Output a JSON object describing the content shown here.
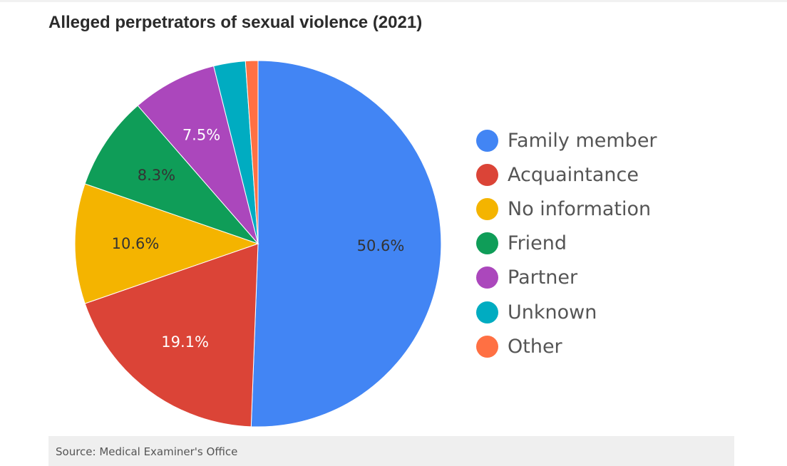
{
  "chart_data": {
    "type": "pie",
    "title": "Alleged perpetrators of sexual violence (2021)",
    "legend_position": "right",
    "slices": [
      {
        "label": "Family member",
        "value": 50.6,
        "display": "50.6%",
        "color": "#4285f4",
        "label_color": "#333333"
      },
      {
        "label": "Acquaintance",
        "value": 19.1,
        "display": "19.1%",
        "color": "#db4437",
        "label_color": "#ffffff"
      },
      {
        "label": "No information",
        "value": 10.6,
        "display": "10.6%",
        "color": "#f4b400",
        "label_color": "#333333"
      },
      {
        "label": "Friend",
        "value": 8.3,
        "display": "8.3%",
        "color": "#0f9d58",
        "label_color": "#333333"
      },
      {
        "label": "Partner",
        "value": 7.5,
        "display": "7.5%",
        "color": "#ab47bc",
        "label_color": "#ffffff"
      },
      {
        "label": "Unknown",
        "value": 2.8,
        "display": "",
        "color": "#00acc1",
        "label_color": "#ffffff"
      },
      {
        "label": "Other",
        "value": 1.1,
        "display": "",
        "color": "#ff7043",
        "label_color": "#ffffff"
      }
    ]
  },
  "footer": {
    "source": "Source: Medical Examiner's Office"
  }
}
